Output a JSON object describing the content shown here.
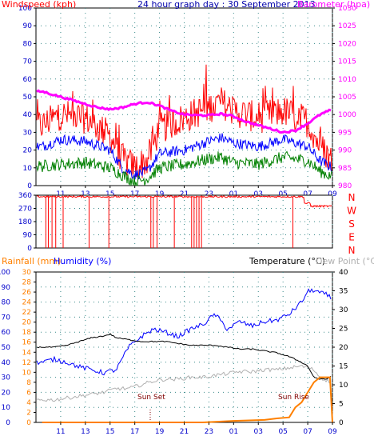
{
  "chart_data": [
    {
      "id": "wind",
      "type": "line",
      "title": "24 hour graph day : 30 September 2013",
      "label_left": "Windspeed (kph)",
      "label_right": "Barometer (hpa)",
      "x_ticks": [
        "11",
        "13",
        "15",
        "17",
        "19",
        "21",
        "23",
        "01",
        "03",
        "05",
        "07",
        "09"
      ],
      "y_left": {
        "min": 0,
        "max": 100,
        "ticks": [
          0,
          10,
          20,
          30,
          40,
          50,
          60,
          70,
          80,
          90,
          100
        ]
      },
      "y_right": {
        "min": 980,
        "max": 1030,
        "ticks": [
          980,
          985,
          990,
          995,
          1000,
          1005,
          1010,
          1015,
          1020,
          1025,
          1030
        ]
      },
      "grid": true,
      "colors": {
        "gust": "#ff0000",
        "avg": "#0000ff",
        "speed": "#008000",
        "barometer": "#ff00ff"
      },
      "series": [
        {
          "key": "gust",
          "x": [
            9.5,
            11,
            13,
            15,
            16,
            17,
            18,
            19,
            21,
            23,
            24,
            25,
            27,
            29,
            31,
            32,
            33
          ],
          "y": [
            34,
            40,
            38,
            28,
            15,
            10,
            14,
            32,
            38,
            44,
            47,
            42,
            38,
            42,
            36,
            22,
            14
          ]
        },
        {
          "key": "avg",
          "x": [
            9.5,
            11,
            13,
            15,
            16,
            17,
            18,
            19,
            21,
            23,
            24,
            25,
            27,
            29,
            31,
            32,
            33
          ],
          "y": [
            22,
            26,
            25,
            20,
            10,
            6,
            8,
            18,
            20,
            25,
            27,
            24,
            22,
            26,
            22,
            14,
            10
          ]
        },
        {
          "key": "speed",
          "x": [
            9.5,
            11,
            13,
            15,
            16,
            17,
            18,
            19,
            21,
            23,
            24,
            25,
            27,
            29,
            31,
            32,
            33
          ],
          "y": [
            11,
            12,
            13,
            10,
            6,
            2,
            4,
            10,
            12,
            15,
            16,
            13,
            12,
            16,
            14,
            8,
            5
          ]
        },
        {
          "key": "barometer",
          "x": [
            9.5,
            11,
            12,
            13,
            14,
            15,
            16,
            17,
            18,
            19,
            20,
            21,
            22,
            23,
            24,
            25,
            26,
            27,
            28,
            29,
            30,
            31,
            32,
            33
          ],
          "y": [
            1006.5,
            1005,
            1004,
            1003,
            1002,
            1001.5,
            1002,
            1003,
            1003.5,
            1002.5,
            1001,
            1000,
            999.8,
            999.8,
            1000.2,
            999.5,
            998,
            997,
            996,
            995,
            995.5,
            997.5,
            1000,
            1001.5
          ]
        }
      ]
    },
    {
      "id": "direction",
      "type": "line",
      "y_ticks": [
        0,
        90,
        180,
        270,
        360
      ],
      "compass": [
        "N",
        "W",
        "S",
        "E",
        "N"
      ],
      "color": "#ff0000",
      "drops_at": [
        9.8,
        10.0,
        10.3,
        10.6,
        11.2,
        13.3,
        14.9,
        18.3,
        18.5,
        18.8,
        20.2,
        21.6,
        21.8,
        22.0,
        22.2,
        22.4,
        29.8
      ],
      "series_y": 350
    },
    {
      "id": "temp",
      "type": "line",
      "labels": {
        "rain": "Rainfall (mm)",
        "humidity": "Humidity (%)",
        "temperature": "Temperature (°C)",
        "dewpoint": "Dew Point (°C)"
      },
      "y_humidity": {
        "min": 0,
        "max": 100,
        "ticks": [
          0,
          10,
          20,
          30,
          40,
          50,
          60,
          70,
          80,
          90,
          100
        ]
      },
      "y_rain": {
        "min": 0,
        "max": 30,
        "ticks": [
          0,
          2,
          4,
          6,
          8,
          10,
          12,
          14,
          16,
          18,
          20,
          22,
          24,
          26,
          28,
          30
        ]
      },
      "y_temp": {
        "min": 0,
        "max": 40,
        "ticks": [
          0,
          5,
          10,
          15,
          20,
          25,
          30,
          35,
          40
        ]
      },
      "annotations": [
        "Sun Set",
        "Sun Rise"
      ],
      "colors": {
        "humidity": "#0000ff",
        "temperature": "#000000",
        "dewpoint": "#b0b0b0",
        "rain": "#ff8000"
      },
      "series": [
        {
          "key": "humidity",
          "x": [
            9.5,
            10.5,
            11.5,
            12.5,
            13.5,
            14.5,
            15.5,
            16.5,
            17.5,
            18.5,
            19.5,
            20.5,
            21.5,
            22.5,
            23.5,
            24.5,
            25.5,
            26.5,
            27.5,
            28.5,
            29.5,
            30.5,
            31,
            31.5,
            32,
            32.5,
            33
          ],
          "y": [
            40,
            42,
            40,
            37,
            35,
            33,
            35,
            50,
            57,
            62,
            60,
            57,
            62,
            65,
            72,
            62,
            67,
            64,
            67,
            68,
            72,
            80,
            87,
            88,
            86,
            85,
            82
          ]
        },
        {
          "key": "temperature",
          "x": [
            9.5,
            10.5,
            11.5,
            12.5,
            13.5,
            14.5,
            15,
            15.5,
            16.5,
            17.5,
            18.5,
            19.5,
            20.5,
            21.5,
            22.5,
            23.5,
            24.5,
            25.5,
            26.5,
            27.5,
            28.5,
            29.5,
            30.5,
            31,
            31.5,
            32,
            32.5,
            33
          ],
          "y": [
            20,
            20,
            20.5,
            21.5,
            22.5,
            23,
            23.5,
            22.5,
            22,
            21.5,
            21.5,
            21.5,
            21,
            20.5,
            20.5,
            20.5,
            20,
            19.5,
            19.5,
            19,
            18.5,
            17.5,
            16,
            15,
            12,
            11.5,
            11.5,
            12.5
          ]
        },
        {
          "key": "dewpoint",
          "x": [
            9.5,
            10.5,
            11.5,
            12.5,
            13.5,
            14.5,
            15.5,
            16.5,
            17.5,
            18.5,
            19.5,
            20.5,
            21.5,
            22.5,
            23.5,
            24.5,
            25.5,
            26.5,
            27.5,
            28.5,
            29.5,
            30.5,
            31,
            31.5,
            32,
            33
          ],
          "y": [
            6,
            6,
            6.5,
            7,
            7.5,
            8,
            9,
            9,
            10,
            11,
            11.5,
            11.5,
            12,
            12,
            12.5,
            13,
            13.5,
            13.5,
            14,
            14,
            14.5,
            15,
            14.5,
            14,
            12,
            10.5
          ]
        },
        {
          "key": "rain",
          "x": [
            9.5,
            22.5,
            25,
            27.5,
            28.5,
            29.5,
            30,
            30.5,
            31,
            31.5,
            32,
            32.8,
            33
          ],
          "y": [
            0,
            0,
            0.3,
            0.5,
            0.8,
            1,
            3,
            4,
            6,
            8,
            9,
            9,
            0
          ]
        }
      ]
    }
  ]
}
